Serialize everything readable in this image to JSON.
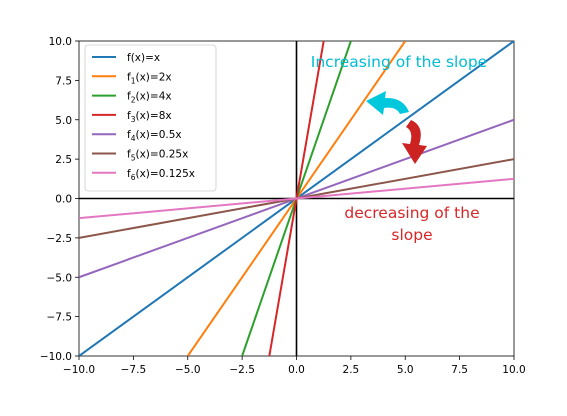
{
  "chart_data": {
    "type": "line",
    "title": "",
    "xlabel": "",
    "ylabel": "",
    "xlim": [
      -10,
      10
    ],
    "ylim": [
      -10,
      10
    ],
    "x_ticks": [
      -10,
      -7.5,
      -5,
      -2.5,
      0,
      2.5,
      5,
      7.5,
      10
    ],
    "y_ticks": [
      -10,
      -7.5,
      -5,
      -2.5,
      0,
      2.5,
      5,
      7.5,
      10
    ],
    "x_tick_labels": [
      "−10.0",
      "−7.5",
      "−5.0",
      "−2.5",
      "0.0",
      "2.5",
      "5.0",
      "7.5",
      "10.0"
    ],
    "y_tick_labels": [
      "−10.0",
      "−7.5",
      "−5.0",
      "−2.5",
      "0.0",
      "2.5",
      "5.0",
      "7.5",
      "10.0"
    ],
    "grid": false,
    "legend_position": "top-left",
    "series": [
      {
        "name": "f(x)=x",
        "label_parts": [
          "f(x)=x",
          "",
          ""
        ],
        "slope": 1,
        "color": "#1f77b4",
        "x": [
          -10,
          10
        ],
        "y": [
          -10,
          10
        ]
      },
      {
        "name": "f1(x)=2x",
        "label_parts": [
          "f",
          "1",
          "(x)=2x"
        ],
        "slope": 2,
        "color": "#ff7f0e",
        "x": [
          -5,
          5
        ],
        "y": [
          -10,
          10
        ]
      },
      {
        "name": "f2(x)=4x",
        "label_parts": [
          "f",
          "2",
          "(x)=4x"
        ],
        "slope": 4,
        "color": "#2ca02c",
        "x": [
          -2.5,
          2.5
        ],
        "y": [
          -10,
          10
        ]
      },
      {
        "name": "f3(x)=8x",
        "label_parts": [
          "f",
          "3",
          "(x)=8x"
        ],
        "slope": 8,
        "color": "#d62728",
        "x": [
          -1.25,
          1.25
        ],
        "y": [
          -10,
          10
        ]
      },
      {
        "name": "f4(x)=0.5x",
        "label_parts": [
          "f",
          "4",
          "(x)=0.5x"
        ],
        "slope": 0.5,
        "color": "#9467bd",
        "x": [
          -10,
          10
        ],
        "y": [
          -5,
          5
        ]
      },
      {
        "name": "f5(x)=0.25x",
        "label_parts": [
          "f",
          "5",
          "(x)=0.25x"
        ],
        "slope": 0.25,
        "color": "#8c564b",
        "x": [
          -10,
          10
        ],
        "y": [
          -2.5,
          2.5
        ]
      },
      {
        "name": "f6(x)=0.125x",
        "label_parts": [
          "f",
          "6",
          "(x)=0.125x"
        ],
        "slope": 0.125,
        "color": "#e377c2",
        "x": [
          -10,
          10
        ],
        "y": [
          -1.25,
          1.25
        ]
      }
    ],
    "annotations": [
      {
        "text_lines": [
          "Increasing of the slope"
        ],
        "color": "#00bcd4"
      },
      {
        "text_lines": [
          "decreasing of the",
          "slope"
        ],
        "color": "#d62728"
      }
    ],
    "arrow_colors": {
      "increasing": "#00c8dc",
      "decreasing": "#cc2222"
    }
  }
}
